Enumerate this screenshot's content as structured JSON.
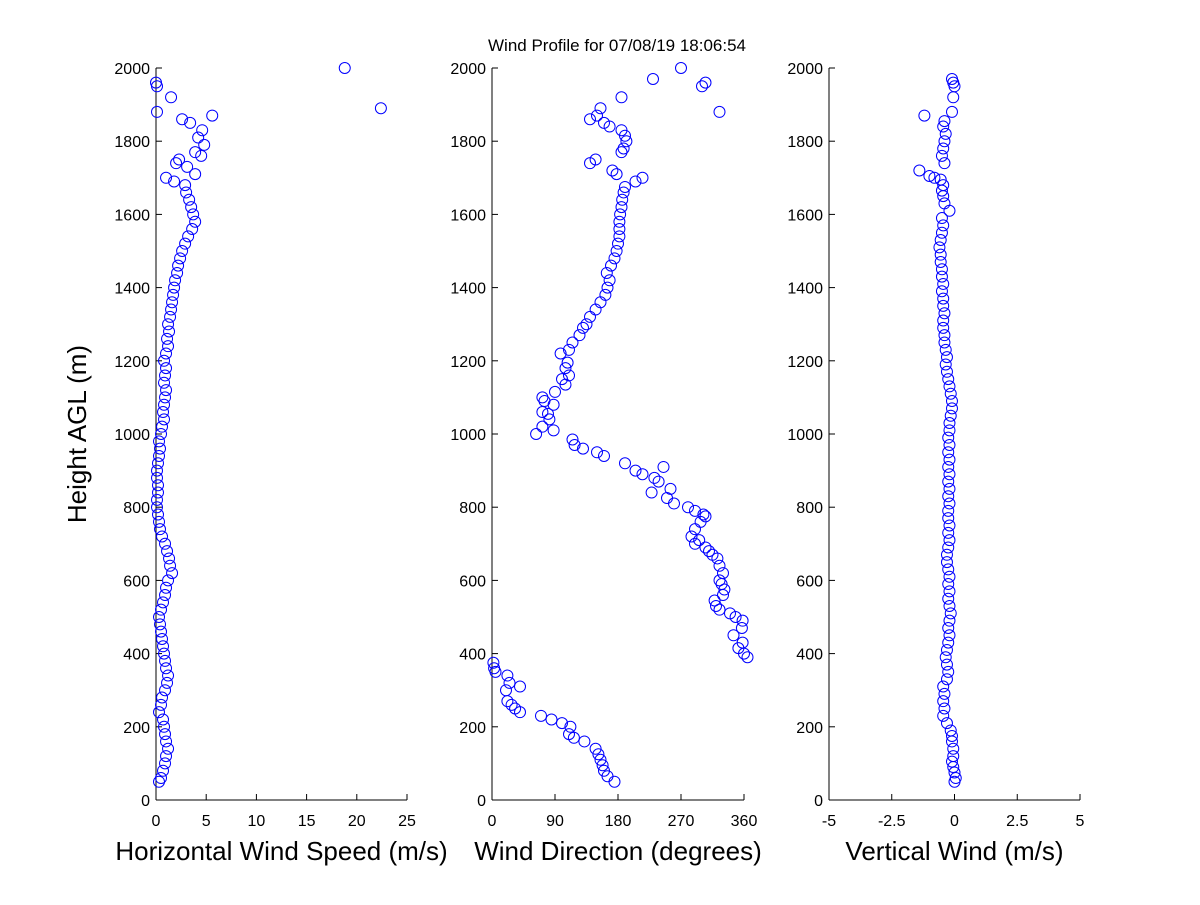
{
  "figure": {
    "title": "Wind Profile for  07/08/19 18:06:54",
    "marker_color": "#0000ff"
  },
  "chart_data": [
    {
      "type": "scatter",
      "id": "speed",
      "xlabel": "Horizontal Wind Speed (m/s)",
      "ylabel": "Height AGL (m)",
      "xlim": [
        0,
        25
      ],
      "ylim": [
        0,
        2000
      ],
      "xticks": [
        0,
        5,
        10,
        15,
        20,
        25
      ],
      "xtick_labels": [
        "0",
        "5",
        "10",
        "15",
        "20",
        "25"
      ],
      "yticks": [
        0,
        200,
        400,
        600,
        800,
        1000,
        1200,
        1400,
        1600,
        1800,
        2000
      ],
      "ytick_labels": [
        "0",
        "200",
        "400",
        "600",
        "800",
        "1000",
        "1200",
        "1400",
        "1600",
        "1800",
        "2000"
      ],
      "marker": "circle-open",
      "points": [
        [
          0.3,
          50
        ],
        [
          0.5,
          60
        ],
        [
          0.7,
          80
        ],
        [
          0.9,
          100
        ],
        [
          1.0,
          120
        ],
        [
          1.2,
          140
        ],
        [
          1.0,
          160
        ],
        [
          0.9,
          180
        ],
        [
          0.8,
          200
        ],
        [
          0.7,
          220
        ],
        [
          0.3,
          240
        ],
        [
          0.5,
          260
        ],
        [
          0.6,
          280
        ],
        [
          0.9,
          300
        ],
        [
          1.1,
          320
        ],
        [
          1.2,
          340
        ],
        [
          1.0,
          360
        ],
        [
          0.9,
          380
        ],
        [
          0.8,
          400
        ],
        [
          0.7,
          420
        ],
        [
          0.6,
          440
        ],
        [
          0.5,
          460
        ],
        [
          0.4,
          480
        ],
        [
          0.3,
          500
        ],
        [
          0.5,
          520
        ],
        [
          0.7,
          540
        ],
        [
          0.9,
          560
        ],
        [
          1.0,
          580
        ],
        [
          1.2,
          600
        ],
        [
          1.6,
          620
        ],
        [
          1.4,
          640
        ],
        [
          1.3,
          660
        ],
        [
          1.1,
          680
        ],
        [
          0.9,
          700
        ],
        [
          0.6,
          720
        ],
        [
          0.4,
          740
        ],
        [
          0.3,
          760
        ],
        [
          0.2,
          780
        ],
        [
          0.1,
          800
        ],
        [
          0.1,
          820
        ],
        [
          0.2,
          840
        ],
        [
          0.2,
          860
        ],
        [
          0.1,
          880
        ],
        [
          0.1,
          900
        ],
        [
          0.2,
          920
        ],
        [
          0.3,
          940
        ],
        [
          0.4,
          960
        ],
        [
          0.3,
          980
        ],
        [
          0.5,
          1000
        ],
        [
          0.6,
          1020
        ],
        [
          0.8,
          1040
        ],
        [
          0.7,
          1060
        ],
        [
          0.8,
          1080
        ],
        [
          0.9,
          1100
        ],
        [
          1.0,
          1120
        ],
        [
          0.8,
          1140
        ],
        [
          0.9,
          1160
        ],
        [
          1.0,
          1180
        ],
        [
          0.8,
          1200
        ],
        [
          1.0,
          1220
        ],
        [
          1.2,
          1240
        ],
        [
          1.1,
          1260
        ],
        [
          1.3,
          1280
        ],
        [
          1.2,
          1300
        ],
        [
          1.4,
          1320
        ],
        [
          1.5,
          1340
        ],
        [
          1.6,
          1360
        ],
        [
          1.7,
          1380
        ],
        [
          1.8,
          1400
        ],
        [
          1.9,
          1420
        ],
        [
          2.1,
          1440
        ],
        [
          2.2,
          1460
        ],
        [
          2.4,
          1480
        ],
        [
          2.6,
          1500
        ],
        [
          2.9,
          1520
        ],
        [
          3.2,
          1540
        ],
        [
          3.6,
          1560
        ],
        [
          3.9,
          1580
        ],
        [
          3.7,
          1600
        ],
        [
          3.5,
          1620
        ],
        [
          3.3,
          1640
        ],
        [
          3.0,
          1660
        ],
        [
          2.9,
          1680
        ],
        [
          1.8,
          1690
        ],
        [
          1.0,
          1700
        ],
        [
          3.9,
          1710
        ],
        [
          3.1,
          1730
        ],
        [
          2.0,
          1740
        ],
        [
          2.3,
          1750
        ],
        [
          4.5,
          1760
        ],
        [
          3.9,
          1770
        ],
        [
          4.8,
          1790
        ],
        [
          4.2,
          1810
        ],
        [
          4.6,
          1830
        ],
        [
          3.4,
          1850
        ],
        [
          2.6,
          1860
        ],
        [
          5.6,
          1870
        ],
        [
          1.5,
          1920
        ],
        [
          0.1,
          1880
        ],
        [
          22.4,
          1890
        ],
        [
          0.0,
          1960
        ],
        [
          0.1,
          1950
        ],
        [
          18.8,
          2000
        ]
      ]
    },
    {
      "type": "scatter",
      "id": "direction",
      "xlabel": "Wind Direction (degrees)",
      "ylabel": "",
      "xlim": [
        0,
        360
      ],
      "ylim": [
        0,
        2000
      ],
      "xticks": [
        0,
        90,
        180,
        270,
        360
      ],
      "xtick_labels": [
        "0",
        "90",
        "180",
        "270",
        "360"
      ],
      "yticks": [
        0,
        200,
        400,
        600,
        800,
        1000,
        1200,
        1400,
        1600,
        1800,
        2000
      ],
      "ytick_labels": [
        "0",
        "200",
        "400",
        "600",
        "800",
        "1000",
        "1200",
        "1400",
        "1600",
        "1800",
        "2000"
      ],
      "marker": "circle-open",
      "points": [
        [
          175,
          50
        ],
        [
          165,
          65
        ],
        [
          160,
          80
        ],
        [
          158,
          95
        ],
        [
          155,
          110
        ],
        [
          152,
          125
        ],
        [
          148,
          140
        ],
        [
          132,
          160
        ],
        [
          117,
          170
        ],
        [
          110,
          180
        ],
        [
          112,
          200
        ],
        [
          100,
          210
        ],
        [
          85,
          220
        ],
        [
          70,
          230
        ],
        [
          40,
          240
        ],
        [
          33,
          250
        ],
        [
          28,
          260
        ],
        [
          22,
          270
        ],
        [
          20,
          300
        ],
        [
          40,
          310
        ],
        [
          25,
          320
        ],
        [
          22,
          340
        ],
        [
          5,
          350
        ],
        [
          3,
          360
        ],
        [
          2,
          375
        ],
        [
          365,
          390
        ],
        [
          360,
          400
        ],
        [
          352,
          415
        ],
        [
          358,
          430
        ],
        [
          345,
          450
        ],
        [
          357,
          470
        ],
        [
          358,
          490
        ],
        [
          348,
          500
        ],
        [
          340,
          510
        ],
        [
          325,
          520
        ],
        [
          320,
          530
        ],
        [
          318,
          545
        ],
        [
          330,
          560
        ],
        [
          332,
          575
        ],
        [
          328,
          590
        ],
        [
          325,
          600
        ],
        [
          330,
          620
        ],
        [
          325,
          640
        ],
        [
          322,
          660
        ],
        [
          315,
          670
        ],
        [
          310,
          680
        ],
        [
          305,
          690
        ],
        [
          290,
          700
        ],
        [
          296,
          710
        ],
        [
          285,
          720
        ],
        [
          290,
          740
        ],
        [
          298,
          760
        ],
        [
          305,
          775
        ],
        [
          302,
          780
        ],
        [
          290,
          790
        ],
        [
          280,
          800
        ],
        [
          260,
          810
        ],
        [
          250,
          825
        ],
        [
          255,
          850
        ],
        [
          238,
          870
        ],
        [
          232,
          880
        ],
        [
          228,
          840
        ],
        [
          215,
          890
        ],
        [
          205,
          900
        ],
        [
          245,
          910
        ],
        [
          190,
          920
        ],
        [
          160,
          940
        ],
        [
          150,
          950
        ],
        [
          130,
          960
        ],
        [
          118,
          970
        ],
        [
          115,
          985
        ],
        [
          63,
          1000
        ],
        [
          88,
          1010
        ],
        [
          72,
          1020
        ],
        [
          82,
          1040
        ],
        [
          80,
          1055
        ],
        [
          72,
          1060
        ],
        [
          88,
          1080
        ],
        [
          75,
          1090
        ],
        [
          72,
          1100
        ],
        [
          90,
          1115
        ],
        [
          105,
          1135
        ],
        [
          100,
          1150
        ],
        [
          110,
          1160
        ],
        [
          105,
          1180
        ],
        [
          108,
          1195
        ],
        [
          98,
          1220
        ],
        [
          110,
          1230
        ],
        [
          115,
          1250
        ],
        [
          125,
          1270
        ],
        [
          130,
          1290
        ],
        [
          135,
          1300
        ],
        [
          140,
          1320
        ],
        [
          148,
          1340
        ],
        [
          155,
          1360
        ],
        [
          162,
          1380
        ],
        [
          165,
          1400
        ],
        [
          168,
          1420
        ],
        [
          164,
          1440
        ],
        [
          170,
          1460
        ],
        [
          175,
          1480
        ],
        [
          178,
          1500
        ],
        [
          180,
          1520
        ],
        [
          182,
          1540
        ],
        [
          182,
          1560
        ],
        [
          182,
          1580
        ],
        [
          183,
          1600
        ],
        [
          185,
          1620
        ],
        [
          186,
          1640
        ],
        [
          188,
          1660
        ],
        [
          190,
          1675
        ],
        [
          205,
          1690
        ],
        [
          215,
          1700
        ],
        [
          178,
          1710
        ],
        [
          172,
          1720
        ],
        [
          140,
          1740
        ],
        [
          148,
          1750
        ],
        [
          185,
          1770
        ],
        [
          188,
          1780
        ],
        [
          192,
          1800
        ],
        [
          190,
          1815
        ],
        [
          185,
          1830
        ],
        [
          168,
          1840
        ],
        [
          160,
          1850
        ],
        [
          140,
          1860
        ],
        [
          150,
          1870
        ],
        [
          155,
          1890
        ],
        [
          185,
          1920
        ],
        [
          325,
          1880
        ],
        [
          300,
          1950
        ],
        [
          305,
          1960
        ],
        [
          230,
          1970
        ],
        [
          270,
          2000
        ]
      ]
    },
    {
      "type": "scatter",
      "id": "vertical",
      "xlabel": "Vertical Wind (m/s)",
      "ylabel": "",
      "xlim": [
        -5,
        5
      ],
      "ylim": [
        0,
        2000
      ],
      "xticks": [
        -5,
        -2.5,
        0,
        2.5,
        5
      ],
      "xtick_labels": [
        "-5",
        "-2.5",
        "0",
        "2.5",
        "5"
      ],
      "yticks": [
        0,
        200,
        400,
        600,
        800,
        1000,
        1200,
        1400,
        1600,
        1800,
        2000
      ],
      "ytick_labels": [
        "0",
        "200",
        "400",
        "600",
        "800",
        "1000",
        "1200",
        "1400",
        "1600",
        "1800",
        "2000"
      ],
      "marker": "circle-open",
      "points": [
        [
          0.0,
          50
        ],
        [
          0.05,
          60
        ],
        [
          0.0,
          75
        ],
        [
          -0.05,
          90
        ],
        [
          -0.1,
          105
        ],
        [
          -0.05,
          120
        ],
        [
          -0.05,
          140
        ],
        [
          -0.1,
          160
        ],
        [
          -0.1,
          175
        ],
        [
          -0.15,
          190
        ],
        [
          -0.3,
          210
        ],
        [
          -0.45,
          230
        ],
        [
          -0.4,
          250
        ],
        [
          -0.45,
          270
        ],
        [
          -0.4,
          290
        ],
        [
          -0.45,
          310
        ],
        [
          -0.3,
          330
        ],
        [
          -0.25,
          350
        ],
        [
          -0.3,
          370
        ],
        [
          -0.35,
          390
        ],
        [
          -0.3,
          410
        ],
        [
          -0.25,
          430
        ],
        [
          -0.2,
          450
        ],
        [
          -0.25,
          470
        ],
        [
          -0.2,
          490
        ],
        [
          -0.15,
          510
        ],
        [
          -0.2,
          530
        ],
        [
          -0.25,
          550
        ],
        [
          -0.2,
          570
        ],
        [
          -0.25,
          590
        ],
        [
          -0.2,
          610
        ],
        [
          -0.25,
          630
        ],
        [
          -0.3,
          650
        ],
        [
          -0.3,
          670
        ],
        [
          -0.25,
          690
        ],
        [
          -0.2,
          710
        ],
        [
          -0.25,
          730
        ],
        [
          -0.2,
          750
        ],
        [
          -0.25,
          770
        ],
        [
          -0.25,
          790
        ],
        [
          -0.2,
          810
        ],
        [
          -0.25,
          830
        ],
        [
          -0.2,
          850
        ],
        [
          -0.25,
          870
        ],
        [
          -0.2,
          890
        ],
        [
          -0.25,
          910
        ],
        [
          -0.2,
          930
        ],
        [
          -0.25,
          950
        ],
        [
          -0.2,
          970
        ],
        [
          -0.25,
          990
        ],
        [
          -0.2,
          1010
        ],
        [
          -0.2,
          1030
        ],
        [
          -0.15,
          1050
        ],
        [
          -0.1,
          1070
        ],
        [
          -0.1,
          1090
        ],
        [
          -0.15,
          1110
        ],
        [
          -0.2,
          1130
        ],
        [
          -0.25,
          1150
        ],
        [
          -0.3,
          1170
        ],
        [
          -0.35,
          1190
        ],
        [
          -0.3,
          1210
        ],
        [
          -0.35,
          1230
        ],
        [
          -0.4,
          1250
        ],
        [
          -0.4,
          1270
        ],
        [
          -0.45,
          1290
        ],
        [
          -0.45,
          1310
        ],
        [
          -0.4,
          1330
        ],
        [
          -0.45,
          1350
        ],
        [
          -0.45,
          1370
        ],
        [
          -0.5,
          1390
        ],
        [
          -0.45,
          1410
        ],
        [
          -0.5,
          1430
        ],
        [
          -0.5,
          1450
        ],
        [
          -0.55,
          1470
        ],
        [
          -0.55,
          1490
        ],
        [
          -0.6,
          1510
        ],
        [
          -0.55,
          1530
        ],
        [
          -0.5,
          1550
        ],
        [
          -0.45,
          1570
        ],
        [
          -0.5,
          1590
        ],
        [
          -0.2,
          1610
        ],
        [
          -0.4,
          1630
        ],
        [
          -0.45,
          1650
        ],
        [
          -0.5,
          1665
        ],
        [
          -0.45,
          1680
        ],
        [
          -0.55,
          1695
        ],
        [
          -0.8,
          1700
        ],
        [
          -1.0,
          1705
        ],
        [
          -1.4,
          1720
        ],
        [
          -0.4,
          1740
        ],
        [
          -0.5,
          1760
        ],
        [
          -0.45,
          1780
        ],
        [
          -0.4,
          1800
        ],
        [
          -0.35,
          1820
        ],
        [
          -0.45,
          1840
        ],
        [
          -0.4,
          1855
        ],
        [
          -1.2,
          1870
        ],
        [
          -0.1,
          1880
        ],
        [
          -0.05,
          1920
        ],
        [
          0.0,
          1950
        ],
        [
          -0.05,
          1960
        ],
        [
          -0.1,
          1970
        ]
      ]
    }
  ]
}
